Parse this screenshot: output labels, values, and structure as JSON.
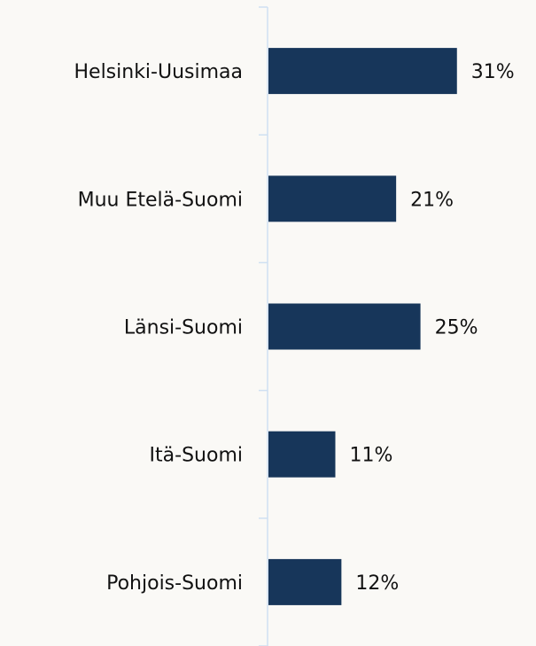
{
  "chart_data": {
    "type": "bar",
    "orientation": "horizontal",
    "categories": [
      "Helsinki-Uusimaa",
      "Muu Etelä-Suomi",
      "Länsi-Suomi",
      "Itä-Suomi",
      "Pohjois-Suomi"
    ],
    "values": [
      31,
      21,
      25,
      11,
      12
    ],
    "value_labels": [
      "31%",
      "21%",
      "25%",
      "11%",
      "12%"
    ],
    "color": "#17365a",
    "xlim": [
      0,
      44
    ]
  }
}
